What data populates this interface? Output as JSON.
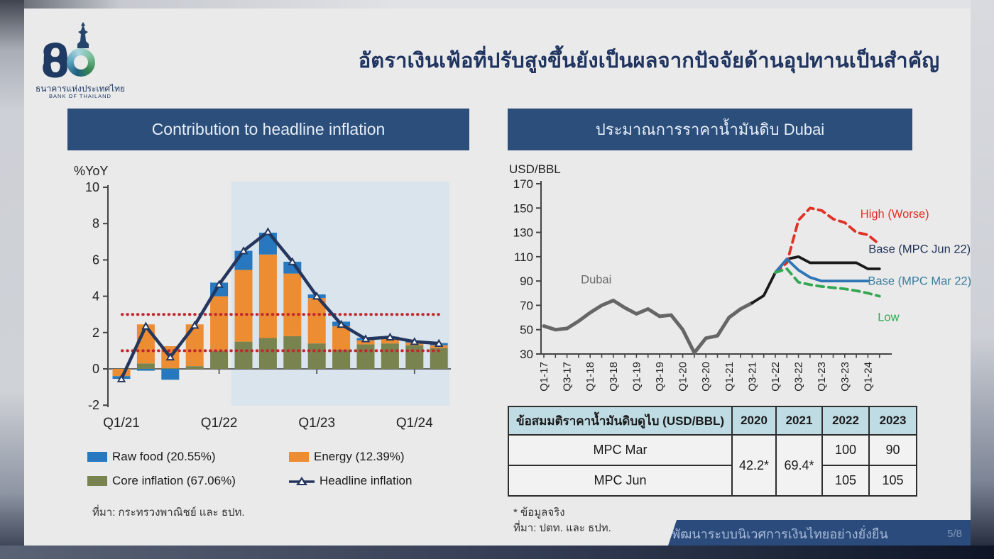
{
  "logo": {
    "number": "80",
    "thai": "ธนาคารแห่งประเทศไทย",
    "eng": "BANK OF THAILAND"
  },
  "title": "อัตราเงินเฟ้อที่ปรับสูงขึ้นยังเป็นผลจากปัจจัยด้านอุปทานเป็นสำคัญ",
  "left_panel": {
    "header": "Contribution to headline inflation",
    "source": "ที่มา: กระทรวงพาณิชย์ และ ธปท."
  },
  "right_panel": {
    "header": "ประมาณการราคาน้ำมันดิบ Dubai",
    "footnote_star": "* ข้อมูลจริง",
    "footnote_source": "ที่มา: ปตท. และ ธปท."
  },
  "table": {
    "header": [
      "ข้อสมมติราคาน้ำมันดิบดูไบ (USD/BBL)",
      "2020",
      "2021",
      "2022",
      "2023"
    ],
    "actual_2020": "42.2*",
    "actual_2021": "69.4*",
    "rows": {
      "mpc_mar": {
        "label": "MPC Mar",
        "y2022": "100",
        "y2023": "90"
      },
      "mpc_jun": {
        "label": "MPC Jun",
        "y2022": "105",
        "y2023": "105"
      }
    }
  },
  "footer": {
    "banner": "พัฒนาระบบนิเวศการเงินไทยอย่างยั่งยืน",
    "page": "5/8"
  },
  "colors": {
    "panel_header_bg": "#2B4E7B",
    "title_text": "#1F3460",
    "slide_bg": "#EAEAEA",
    "footer_bar_bg": "#2B4B7C",
    "table_header_bg": "#BFDBE4",
    "mpc_mar_blue": "#2E75B6"
  },
  "chart_data": [
    {
      "id": "headline-inflation-contribution",
      "type": "bar",
      "title": "Contribution to headline inflation",
      "xlabel": "",
      "ylabel": "%YoY",
      "ylim": [
        -2,
        10
      ],
      "yticks": [
        -2,
        0,
        2,
        4,
        6,
        8,
        10
      ],
      "grid": false,
      "categories": [
        "Q1/21",
        "Q2/21",
        "Q3/21",
        "Q4/21",
        "Q1/22",
        "Q2/22",
        "Q3/22",
        "Q4/22",
        "Q1/23",
        "Q2/23",
        "Q3/23",
        "Q4/23",
        "Q1/24",
        "Q2/24"
      ],
      "xtick_indices": [
        0,
        4,
        8,
        12
      ],
      "series": [
        {
          "name": "Core inflation (67.06%)",
          "type": "bar",
          "color": "#78834F",
          "values": [
            0,
            0.3,
            0.05,
            0.15,
            1.0,
            1.5,
            1.7,
            1.8,
            1.4,
            1.05,
            1.35,
            1.4,
            1.3,
            1.15
          ]
        },
        {
          "name": "Energy (12.39%)",
          "type": "bar",
          "color": "#EC8C33",
          "values": [
            -0.4,
            2.15,
            1.2,
            2.3,
            3.0,
            3.95,
            4.6,
            3.45,
            2.5,
            1.3,
            0.22,
            0.27,
            0.15,
            0.15
          ]
        },
        {
          "name": "Raw food (20.55%)",
          "type": "bar",
          "color": "#2778BE",
          "values": [
            -0.15,
            -0.1,
            -0.6,
            0,
            0.75,
            1.05,
            1.2,
            0.65,
            0.2,
            0.25,
            0.13,
            0.1,
            0.1,
            0.12
          ]
        },
        {
          "name": "Headline inflation",
          "type": "line",
          "color": "#24365E",
          "marker": "triangle",
          "values": [
            -0.55,
            2.35,
            0.65,
            2.4,
            4.65,
            6.5,
            7.55,
            5.9,
            4.0,
            2.45,
            1.65,
            1.75,
            1.5,
            1.4
          ]
        }
      ],
      "reference_lines": [
        {
          "y": 1,
          "color": "#C1272D",
          "style": "dotted"
        },
        {
          "y": 3,
          "color": "#C1272D",
          "style": "dotted"
        }
      ],
      "shaded_region": {
        "from_category": "Q2/22",
        "to_category": "Q2/24",
        "color": "#D9E4EC"
      }
    },
    {
      "id": "dubai-oil-forecast",
      "type": "line",
      "title": "ประมาณการราคาน้ำมันดิบ Dubai",
      "xlabel": "",
      "ylabel": "USD/BBL",
      "ylim": [
        30,
        170
      ],
      "yticks": [
        30,
        50,
        70,
        90,
        110,
        130,
        150,
        170
      ],
      "grid": false,
      "xtick_step": 2,
      "x_categories": [
        "Q1-17",
        "Q2-17",
        "Q3-17",
        "Q4-17",
        "Q1-18",
        "Q2-18",
        "Q3-18",
        "Q4-18",
        "Q1-19",
        "Q2-19",
        "Q3-19",
        "Q4-19",
        "Q1-20",
        "Q2-20",
        "Q3-20",
        "Q4-20",
        "Q1-21",
        "Q2-21",
        "Q3-21",
        "Q4-21",
        "Q1-22",
        "Q2-22",
        "Q3-22",
        "Q4-22",
        "Q1-23",
        "Q2-23",
        "Q3-23",
        "Q4-23",
        "Q1-24",
        "Q2-24"
      ],
      "series": [
        {
          "name": "Dubai",
          "color": "#666666",
          "dash": null,
          "width": 5,
          "start_index": 0,
          "values": [
            53,
            50,
            51,
            57,
            64,
            70,
            74,
            68,
            63,
            67,
            61,
            62,
            50,
            31,
            43,
            45,
            60,
            67,
            72
          ],
          "label": {
            "x": 3.2,
            "y": 88,
            "color": "#6b6b6b"
          }
        },
        {
          "name": "Base (MPC Jun 22)",
          "color": "#1A1A1A",
          "dash": null,
          "width": 3.8,
          "start_index": 18,
          "values": [
            72,
            78,
            97,
            108,
            110,
            105,
            105,
            105,
            105,
            105,
            100,
            100
          ],
          "label": {
            "x": 28.05,
            "y": 113,
            "color": "#1F3056"
          }
        },
        {
          "name": "High (Worse)",
          "color": "#E03127",
          "dash": "10 7",
          "width": 3.8,
          "start_index": 20,
          "values": [
            97,
            105,
            140,
            150,
            148,
            141,
            138,
            130,
            128,
            120
          ],
          "label": {
            "x": 27.35,
            "y": 142,
            "color": "#E03127"
          }
        },
        {
          "name": "Base (MPC Mar 22)",
          "color": "#2E75B6",
          "dash": null,
          "width": 3.8,
          "start_index": 20,
          "values": [
            97,
            108,
            99,
            93,
            90,
            90,
            90,
            90,
            90
          ],
          "label": {
            "x": 28.0,
            "y": 87,
            "color": "#3B7C9E"
          }
        },
        {
          "name": "Low",
          "color": "#33A852",
          "dash": "10 7",
          "width": 3.8,
          "start_index": 20,
          "values": [
            97,
            100,
            89,
            87,
            85.5,
            84.5,
            83.5,
            82,
            80,
            77.5
          ],
          "label": {
            "x": 28.85,
            "y": 57,
            "color": "#33A852"
          }
        }
      ]
    }
  ]
}
